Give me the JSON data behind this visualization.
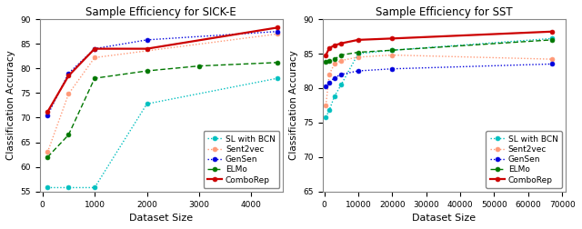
{
  "sick_e": {
    "title": "Sample Efficiency for SICK-E",
    "xlabel": "Dataset Size",
    "ylabel": "Classification Accuracy",
    "ylim": [
      55,
      90
    ],
    "xlim": [
      -50,
      4600
    ],
    "xticks": [
      0,
      1000,
      2000,
      3000,
      4000
    ],
    "yticks": [
      55,
      60,
      65,
      70,
      75,
      80,
      85,
      90
    ],
    "series": {
      "SL with BCN": {
        "x": [
          100,
          500,
          1000,
          2000,
          4500
        ],
        "y": [
          55.8,
          55.8,
          55.8,
          72.8,
          78.0
        ],
        "color": "#00BFBF",
        "linestyle": "dotted",
        "marker": "o",
        "linewidth": 1.0,
        "markersize": 3.5
      },
      "Sent2vec": {
        "x": [
          100,
          500,
          1000,
          4500
        ],
        "y": [
          63.0,
          74.8,
          82.2,
          87.0
        ],
        "color": "#FF9977",
        "linestyle": "dotted",
        "marker": "o",
        "linewidth": 1.0,
        "markersize": 3.5
      },
      "GenSen": {
        "x": [
          100,
          500,
          1000,
          2000,
          4500
        ],
        "y": [
          70.5,
          79.0,
          84.0,
          85.8,
          87.5
        ],
        "color": "#0000DD",
        "linestyle": "dotted",
        "marker": "o",
        "linewidth": 1.0,
        "markersize": 3.5
      },
      "ELMo": {
        "x": [
          100,
          500,
          1000,
          2000,
          3000,
          4500
        ],
        "y": [
          62.0,
          66.5,
          78.0,
          79.5,
          80.5,
          81.2
        ],
        "color": "#007700",
        "linestyle": "dashed",
        "marker": "o",
        "linewidth": 1.0,
        "markersize": 3.5
      },
      "ComboRep": {
        "x": [
          100,
          500,
          1000,
          2000,
          4500
        ],
        "y": [
          71.2,
          78.5,
          84.0,
          84.0,
          88.3
        ],
        "color": "#CC0000",
        "linestyle": "solid",
        "marker": "o",
        "linewidth": 1.6,
        "markersize": 3.5
      }
    }
  },
  "sst": {
    "title": "Sample Efficiency for SST",
    "xlabel": "Dataset Size",
    "ylabel": "Classification Accuracy",
    "ylim": [
      65,
      90
    ],
    "xlim": [
      -500,
      71000
    ],
    "xticks": [
      0,
      10000,
      20000,
      30000,
      40000,
      50000,
      60000,
      70000
    ],
    "yticks": [
      65,
      70,
      75,
      80,
      85,
      90
    ],
    "series": {
      "SL with BCN": {
        "x": [
          500,
          1500,
          3000,
          5000,
          10000,
          20000,
          67000
        ],
        "y": [
          75.8,
          76.8,
          78.8,
          80.5,
          85.0,
          85.5,
          87.2
        ],
        "color": "#00BFBF",
        "linestyle": "dotted",
        "marker": "o",
        "linewidth": 1.0,
        "markersize": 3.5
      },
      "Sent2vec": {
        "x": [
          500,
          1500,
          3000,
          5000,
          10000,
          20000,
          67000
        ],
        "y": [
          77.5,
          82.0,
          83.5,
          84.0,
          84.5,
          84.8,
          84.2
        ],
        "color": "#FF9977",
        "linestyle": "dotted",
        "marker": "o",
        "linewidth": 1.0,
        "markersize": 3.5
      },
      "GenSen": {
        "x": [
          500,
          1500,
          3000,
          5000,
          10000,
          20000,
          67000
        ],
        "y": [
          80.2,
          80.8,
          81.5,
          82.0,
          82.5,
          82.8,
          83.5
        ],
        "color": "#0000DD",
        "linestyle": "dotted",
        "marker": "o",
        "linewidth": 1.0,
        "markersize": 3.5
      },
      "ELMo": {
        "x": [
          500,
          1500,
          3000,
          5000,
          10000,
          20000,
          67000
        ],
        "y": [
          83.8,
          84.0,
          84.2,
          84.8,
          85.2,
          85.5,
          87.0
        ],
        "color": "#007700",
        "linestyle": "dashed",
        "marker": "o",
        "linewidth": 1.0,
        "markersize": 3.5
      },
      "ComboRep": {
        "x": [
          500,
          1500,
          3000,
          5000,
          10000,
          20000,
          67000
        ],
        "y": [
          84.8,
          85.8,
          86.2,
          86.5,
          87.0,
          87.2,
          88.2
        ],
        "color": "#CC0000",
        "linestyle": "solid",
        "marker": "o",
        "linewidth": 1.6,
        "markersize": 3.5
      }
    }
  },
  "legend_order": [
    "SL with BCN",
    "Sent2vec",
    "GenSen",
    "ELMo",
    "ComboRep"
  ]
}
